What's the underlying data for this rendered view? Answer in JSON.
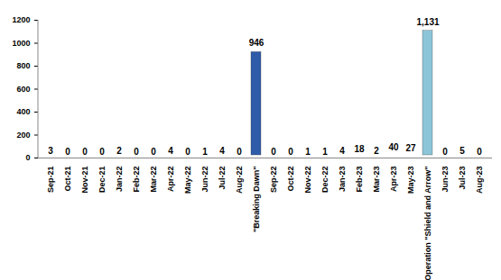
{
  "chart_data": {
    "type": "bar",
    "categories": [
      "Sep-21",
      "Oct-21",
      "Nov-21",
      "Dec-21",
      "Jan-22",
      "Feb-22",
      "Mar-22",
      "Apr-22",
      "May-22",
      "Jun-22",
      "Jul-22",
      "Aug-22",
      "\"Breaking Dawn\"",
      "Sep-22",
      "Oct-22",
      "Nov-22",
      "Dec-22",
      "Jan-23",
      "Feb-23",
      "Mar-23",
      "Apr-23",
      "May-23",
      "Operation \"Shield and Arrow\"",
      "Jun-23",
      "Jul-23",
      "Aug-23"
    ],
    "values": [
      3,
      0,
      0,
      0,
      2,
      0,
      0,
      4,
      0,
      1,
      4,
      0,
      946,
      0,
      0,
      1,
      1,
      4,
      18,
      2,
      40,
      27,
      1131,
      0,
      5,
      0
    ],
    "value_labels": [
      "3",
      "0",
      "0",
      "0",
      "2",
      "0",
      "0",
      "4",
      "0",
      "1",
      "4",
      "0",
      "946",
      "0",
      "0",
      "1",
      "1",
      "4",
      "18",
      "2",
      "40",
      "27",
      "1,131",
      "0",
      "5",
      "0"
    ],
    "colors": [
      "#4f72b0",
      "#b04a47",
      "#8aa84f",
      "#725a96",
      "#44a0b8",
      "#e08c3c",
      "#5b80c0",
      "#c05a56",
      "#98b85c",
      "#8068a6",
      "#52b0c8",
      "#ec9c4c",
      "#2e5ca8",
      "#b04a47",
      "#8aa84f",
      "#725a96",
      "#44a0b8",
      "#e08c3c",
      "#4f72b0",
      "#b04a47",
      "#8aa84f",
      "#725a96",
      "#8cc4d8",
      "#e08c3c",
      "#4f72b0",
      "#b04a47"
    ],
    "ylim": [
      0,
      1200
    ],
    "yticks": [
      0,
      200,
      400,
      600,
      800,
      1000,
      1200
    ],
    "grid": false,
    "data_labels": true
  }
}
